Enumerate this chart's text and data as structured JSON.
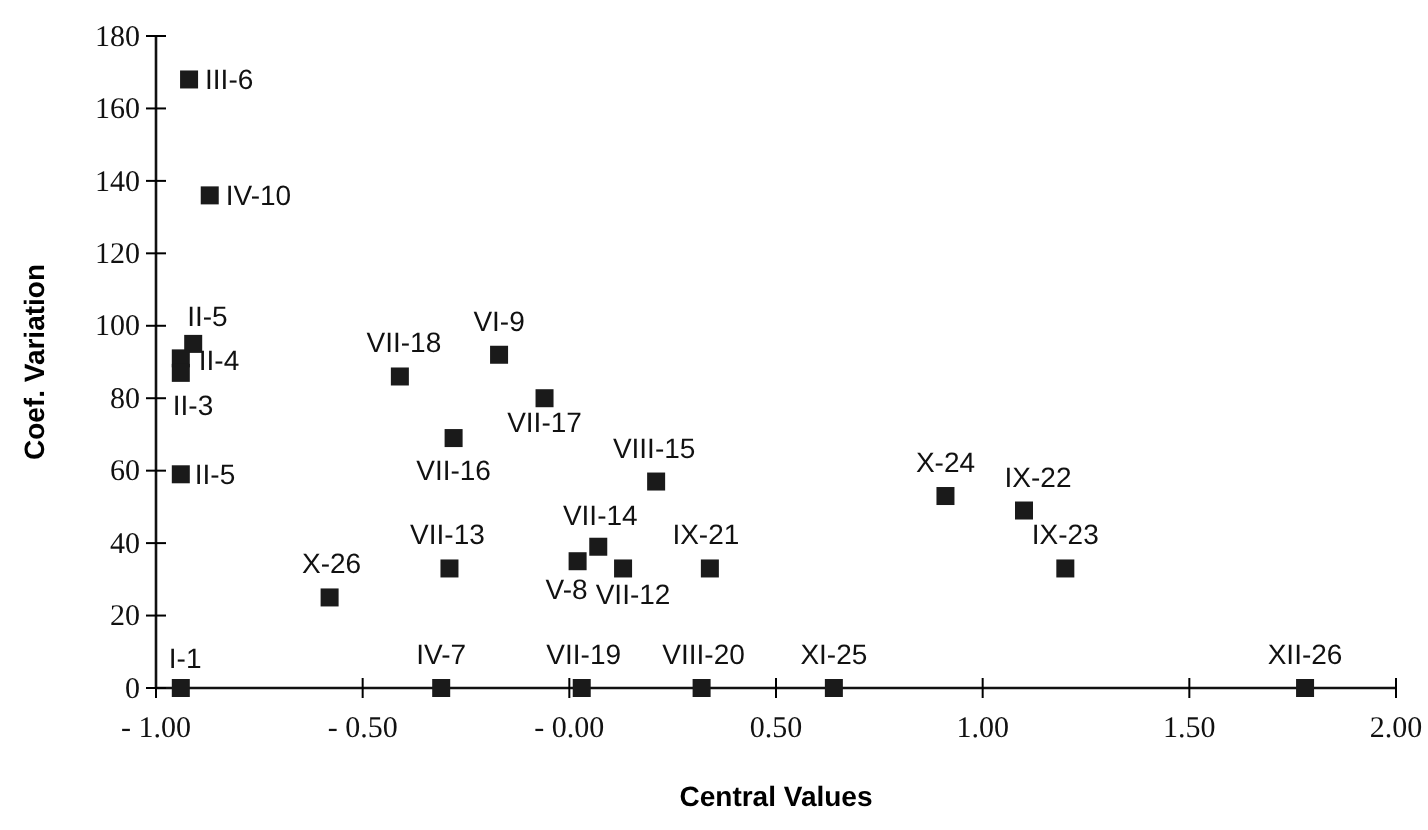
{
  "chart_data": {
    "type": "scatter",
    "xlabel": "Central Values",
    "ylabel": "Coef. Variation",
    "marker": "square",
    "grid": false,
    "xlim": [
      -1,
      2
    ],
    "xticks": [
      {
        "value": -1,
        "label": "- 1.00"
      },
      {
        "value": -0.5,
        "label": "- 0.50"
      },
      {
        "value": 0,
        "label": "- 0.00"
      },
      {
        "value": 0.5,
        "label": "0.50"
      },
      {
        "value": 1,
        "label": "1.00"
      },
      {
        "value": 1.5,
        "label": "1.50"
      },
      {
        "value": 2,
        "label": "2.00"
      }
    ],
    "ylim": [
      0,
      180
    ],
    "yticks": [
      0,
      20,
      40,
      60,
      80,
      100,
      120,
      140,
      160,
      180
    ],
    "series": [
      {
        "color": "#1a1a1a",
        "x": [
          -0.92,
          -0.87,
          -0.91,
          -0.94,
          -0.94,
          -0.94,
          -0.94,
          -0.41,
          -0.17,
          -0.06,
          -0.28,
          0.21,
          0.07,
          0.02,
          0.13,
          -0.29,
          -0.58,
          0.34,
          -0.31,
          0.03,
          0.32,
          0.64,
          0.91,
          1.1,
          1.2,
          1.78
        ],
        "values": [
          168,
          136,
          95,
          91,
          87,
          59,
          0,
          86,
          92,
          80,
          69,
          57,
          39,
          35,
          33,
          33,
          25,
          33,
          0,
          0,
          0,
          0,
          53,
          49,
          33,
          0
        ]
      }
    ],
    "annotations": [
      {
        "text": "III-6",
        "x": -0.92,
        "y": 168
      },
      {
        "text": "IV-10",
        "x": -0.87,
        "y": 136
      },
      {
        "text": "II-5",
        "x": -0.91,
        "y": 95
      },
      {
        "text": "II-4",
        "x": -0.94,
        "y": 91
      },
      {
        "text": "II-3",
        "x": -0.94,
        "y": 87
      },
      {
        "text": "II-5",
        "x": -0.94,
        "y": 59
      },
      {
        "text": "I-1",
        "x": -0.94,
        "y": 0
      },
      {
        "text": "VII-18",
        "x": -0.41,
        "y": 86
      },
      {
        "text": "VI-9",
        "x": -0.17,
        "y": 92
      },
      {
        "text": "VII-17",
        "x": -0.06,
        "y": 80
      },
      {
        "text": "VII-16",
        "x": -0.28,
        "y": 69
      },
      {
        "text": "VIII-15",
        "x": 0.21,
        "y": 57
      },
      {
        "text": "VII-14",
        "x": 0.07,
        "y": 39
      },
      {
        "text": "V-8",
        "x": 0.02,
        "y": 35
      },
      {
        "text": "VII-12",
        "x": 0.13,
        "y": 33
      },
      {
        "text": "VII-13",
        "x": -0.29,
        "y": 33
      },
      {
        "text": "X-26",
        "x": -0.58,
        "y": 25
      },
      {
        "text": "IX-21",
        "x": 0.34,
        "y": 33
      },
      {
        "text": "IV-7",
        "x": -0.31,
        "y": 0
      },
      {
        "text": "VII-19",
        "x": 0.03,
        "y": 0
      },
      {
        "text": "VIII-20",
        "x": 0.32,
        "y": 0
      },
      {
        "text": "XI-25",
        "x": 0.64,
        "y": 0
      },
      {
        "text": "X-24",
        "x": 0.91,
        "y": 53
      },
      {
        "text": "IX-22",
        "x": 1.1,
        "y": 49
      },
      {
        "text": "IX-23",
        "x": 1.2,
        "y": 33
      },
      {
        "text": "XII-26",
        "x": 1.78,
        "y": 0
      }
    ]
  }
}
